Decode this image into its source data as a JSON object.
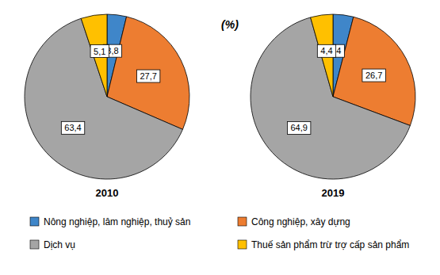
{
  "unit": "(%)",
  "chart_data": [
    {
      "type": "pie",
      "title": "2010",
      "categories": [
        "Nông nghiệp, lâm nghiệp, thuỷ sản",
        "Công nghiệp, xây dựng",
        "Dịch vụ",
        "Thuế sản phẩm trừ trợ cấp sản phẩm"
      ],
      "values": [
        3.8,
        27.7,
        63.4,
        5.1
      ],
      "value_labels": [
        "3,8",
        "27,7",
        "63,4",
        "5,1"
      ],
      "colors": [
        "#3f86c9",
        "#ed7d31",
        "#a5a5a5",
        "#ffc000"
      ],
      "data_labels": true,
      "legend": "bottom"
    },
    {
      "type": "pie",
      "title": "2019",
      "categories": [
        "Nông nghiệp, lâm nghiệp, thuỷ sản",
        "Công nghiệp, xây dựng",
        "Dịch vụ",
        "Thuế sản phẩm trừ trợ cấp sản phẩm"
      ],
      "values": [
        4,
        26.7,
        64.9,
        4.4
      ],
      "value_labels": [
        "4",
        "26,7",
        "64,9",
        "4,4"
      ],
      "colors": [
        "#3f86c9",
        "#ed7d31",
        "#a5a5a5",
        "#ffc000"
      ],
      "data_labels": true
    }
  ]
}
